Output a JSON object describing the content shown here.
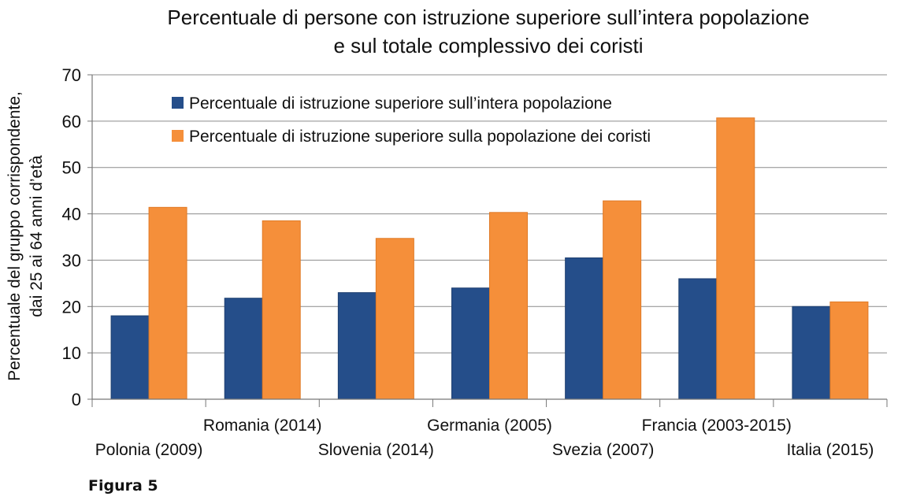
{
  "chart_data": {
    "type": "bar",
    "title": "Percentuale di persone con istruzione superiore sull’intera popolazione\ne sul totale complessivo dei coristi",
    "title_lines": [
      "Percentuale di persone con istruzione superiore sull’intera popolazione",
      "e sul totale complessivo dei coristi"
    ],
    "ylabel_lines": [
      "Percentuale del gruppo corrispondente,",
      "dai 25 ai 64 anni d’età"
    ],
    "xlabel": "",
    "ylim": [
      0,
      70
    ],
    "yticks": [
      0,
      10,
      20,
      30,
      40,
      50,
      60,
      70
    ],
    "grid": true,
    "legend_position": "top",
    "categories": [
      "Polonia (2009)",
      "Romania (2014)",
      "Slovenia (2014)",
      "Germania (2005)",
      "Svezia (2007)",
      "Francia (2003-2015)",
      "Italia (2015)"
    ],
    "series": [
      {
        "name": "Percentuale di istruzione superiore sull’intera popolazione",
        "color": "#254e8a",
        "values": [
          18,
          21.8,
          23,
          24,
          30.5,
          26,
          20
        ]
      },
      {
        "name": "Percentuale di istruzione superiore sulla popolazione dei coristi",
        "color": "#f58f3a",
        "values": [
          41.4,
          38.5,
          34.7,
          40.3,
          42.8,
          60.7,
          21
        ]
      }
    ]
  },
  "footer": {
    "figure_label": "Figura 5"
  }
}
